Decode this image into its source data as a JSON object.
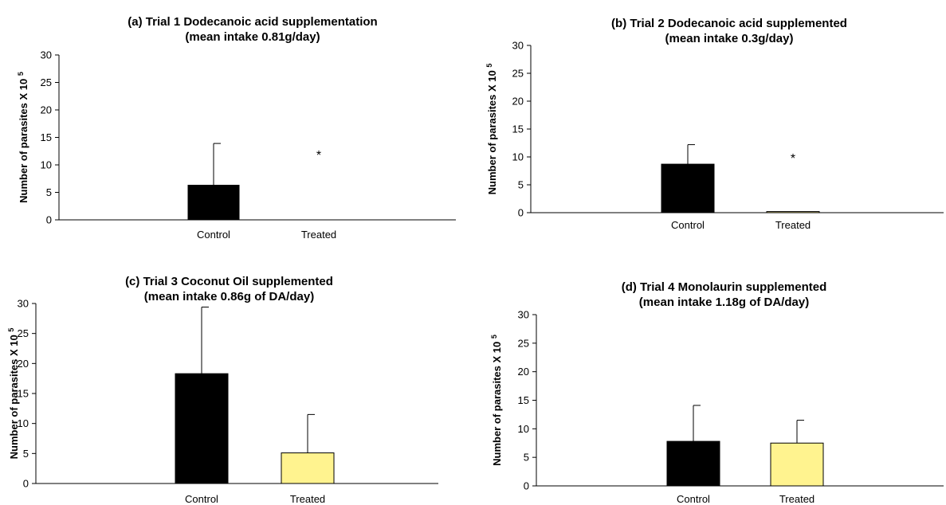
{
  "chart_data": [
    {
      "type": "bar",
      "title": "(a) Trial 1 Dodecanoic acid supplementation",
      "subtitle": "(mean intake 0.81g/day)",
      "ylabel": "Number of parasites X 10",
      "ylabel_exp": "5",
      "ylim": [
        0,
        30
      ],
      "yticks": [
        0,
        5,
        10,
        15,
        20,
        25,
        30
      ],
      "categories": [
        "Control",
        "Treated"
      ],
      "values": [
        6.3,
        0
      ],
      "errors": [
        7.6,
        0
      ],
      "colors": [
        "#000000",
        "#fff38f"
      ],
      "annotation": "*",
      "annotation_y": 11
    },
    {
      "type": "bar",
      "title": "(b) Trial 2 Dodecanoic acid supplemented",
      "subtitle": "(mean intake 0.3g/day)",
      "ylabel": "Number of parasites X 10",
      "ylabel_exp": "5",
      "ylim": [
        0,
        30
      ],
      "yticks": [
        0,
        5,
        10,
        15,
        20,
        25,
        30
      ],
      "categories": [
        "Control",
        "Treated"
      ],
      "values": [
        8.7,
        0.2
      ],
      "errors": [
        3.5,
        0
      ],
      "colors": [
        "#000000",
        "#fff38f"
      ],
      "annotation": "*",
      "annotation_y": 9
    },
    {
      "type": "bar",
      "title": "(c) Trial 3 Coconut Oil supplemented",
      "subtitle": "(mean intake 0.86g of DA/day)",
      "ylabel": "Number of parasites X 10",
      "ylabel_exp": "5",
      "ylim": [
        0,
        30
      ],
      "yticks": [
        0,
        5,
        10,
        15,
        20,
        25,
        30
      ],
      "categories": [
        "Control",
        "Treated"
      ],
      "values": [
        18.3,
        5.1
      ],
      "errors": [
        11.1,
        6.4
      ],
      "colors": [
        "#000000",
        "#fff38f"
      ],
      "annotation": "",
      "annotation_y": 0
    },
    {
      "type": "bar",
      "title": "(d) Trial 4 Monolaurin supplemented",
      "subtitle": "(mean intake 1.18g of DA/day)",
      "ylabel": "Number of parasites X 10",
      "ylabel_exp": "5",
      "ylim": [
        0,
        30
      ],
      "yticks": [
        0,
        5,
        10,
        15,
        20,
        25,
        30
      ],
      "categories": [
        "Control",
        "Treated"
      ],
      "values": [
        7.8,
        7.5
      ],
      "errors": [
        6.3,
        4.0
      ],
      "colors": [
        "#000000",
        "#fff38f"
      ],
      "annotation": "",
      "annotation_y": 0
    }
  ]
}
